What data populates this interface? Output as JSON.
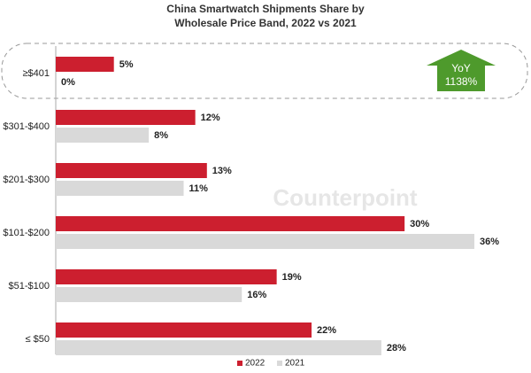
{
  "chart_data": {
    "type": "hbar",
    "title": [
      "China Smartwatch Shipments Share by",
      "Wholesale Price Band, 2022 vs 2021"
    ],
    "categories": [
      "≥$401",
      "$301-$400",
      "$201-$300",
      "$101-$200",
      "$51-$100",
      "≤ $50"
    ],
    "series": [
      {
        "name": "2022",
        "color": "#cc1f2f",
        "values": [
          5,
          12,
          13,
          30,
          19,
          22
        ],
        "value_labels": [
          "5%",
          "12%",
          "13%",
          "30%",
          "19%",
          "22%"
        ]
      },
      {
        "name": "2021",
        "color": "#d9d9d9",
        "values": [
          0,
          8,
          11,
          36,
          16,
          28
        ],
        "value_labels": [
          "0%",
          "8%",
          "11%",
          "36%",
          "16%",
          "28%"
        ]
      }
    ],
    "annotation": [
      "YoY",
      "1138%"
    ],
    "watermark": "Counterpoint",
    "legend": "bottom"
  }
}
